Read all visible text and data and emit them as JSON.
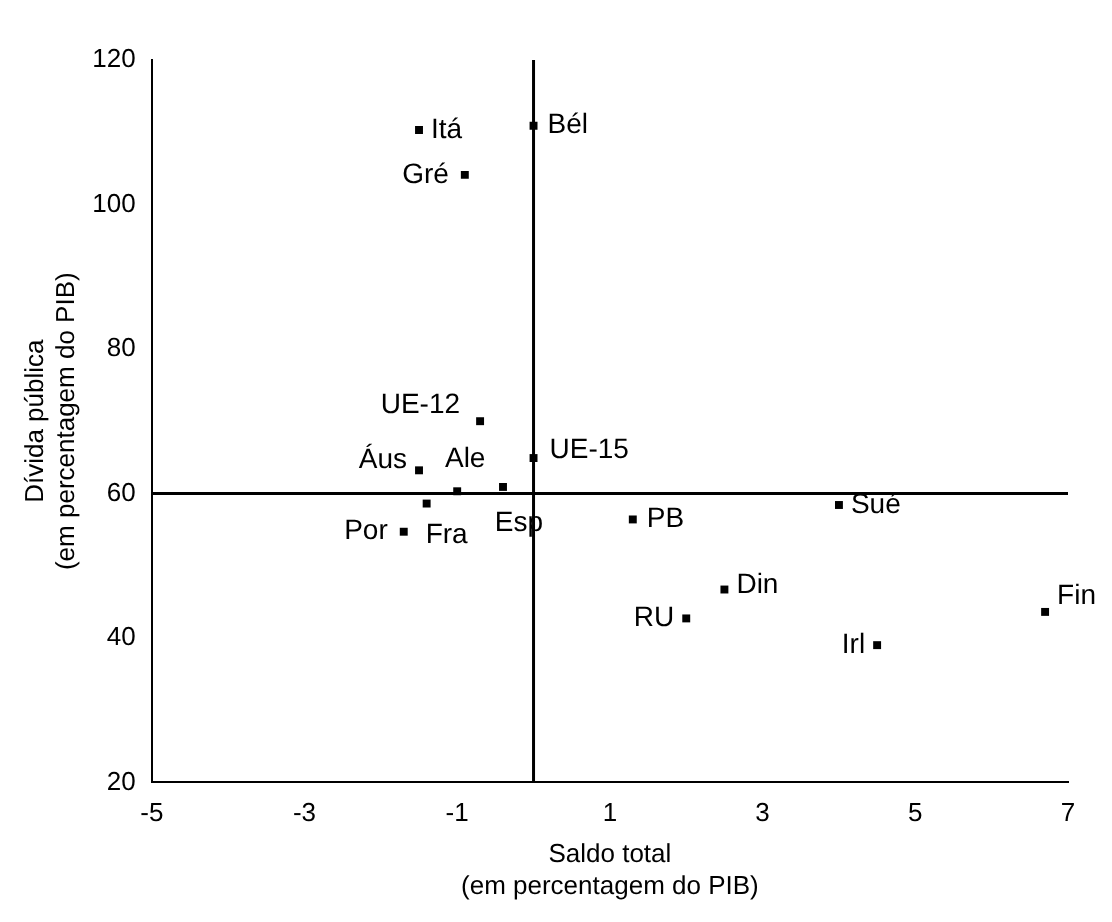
{
  "chart_data": {
    "type": "scatter",
    "xlabel": "Saldo total\n(em percentagem do PIB)",
    "ylabel": "Dívida pública\n(em percentagem do PIB)",
    "x": [
      -1.5,
      0,
      -0.9,
      -0.7,
      0,
      -1.5,
      -1,
      -0.4,
      -1.4,
      -1.7,
      1.3,
      4,
      2.5,
      2,
      4.5,
      6.7
    ],
    "values": [
      110.3,
      110.9,
      104.1,
      70,
      64.9,
      63.2,
      60.3,
      60.9,
      58.6,
      54.7,
      56.4,
      58.4,
      46.7,
      42.7,
      39,
      43.6
    ],
    "color": "#000000",
    "marker": "square",
    "grid": false,
    "legend": false,
    "xlim": [
      -5,
      7
    ],
    "xticks": [
      -5,
      -3,
      -1,
      1,
      3,
      5,
      7
    ],
    "ylim": [
      20,
      120
    ],
    "yticks": [
      20,
      40,
      60,
      80,
      100,
      120
    ],
    "ref_lines": [
      {
        "axis": "x",
        "value": 0,
        "color": "#000000"
      },
      {
        "axis": "y",
        "value": 60,
        "color": "#000000"
      }
    ],
    "annotations": [
      {
        "text": "Itá",
        "x": -1.5,
        "y": 110.3
      },
      {
        "text": "Bél",
        "x": 0,
        "y": 110.9
      },
      {
        "text": "Gré",
        "x": -0.9,
        "y": 104.1
      },
      {
        "text": "UE-12",
        "x": -0.7,
        "y": 70
      },
      {
        "text": "UE-15",
        "x": 0,
        "y": 64.9
      },
      {
        "text": "Áus",
        "x": -1.5,
        "y": 63.2
      },
      {
        "text": "Ale",
        "x": -1,
        "y": 60.3
      },
      {
        "text": "Esp",
        "x": -0.4,
        "y": 60.9
      },
      {
        "text": "Fra",
        "x": -1.4,
        "y": 58.6
      },
      {
        "text": "Por",
        "x": -1.7,
        "y": 54.7
      },
      {
        "text": "PB",
        "x": 1.3,
        "y": 56.4
      },
      {
        "text": "Sué",
        "x": 4,
        "y": 58.4
      },
      {
        "text": "Din",
        "x": 2.5,
        "y": 46.7
      },
      {
        "text": "RU",
        "x": 2,
        "y": 42.7
      },
      {
        "text": "Irl",
        "x": 4.5,
        "y": 39
      },
      {
        "text": "Fin",
        "x": 6.7,
        "y": 43.6
      }
    ]
  }
}
